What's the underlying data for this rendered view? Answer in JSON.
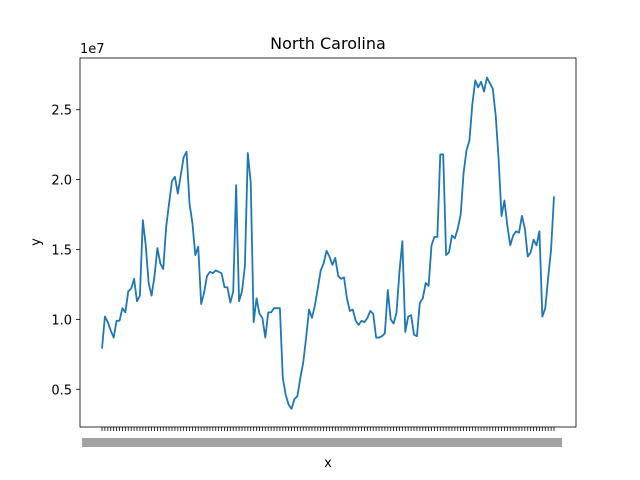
{
  "chart_data": {
    "type": "line",
    "title": "North Carolina",
    "xlabel": "x",
    "ylabel": "y",
    "y_scale_label": "1e7",
    "ylim": [
      2.3,
      28.7
    ],
    "yticks": [
      0.5,
      1.0,
      1.5,
      2.0,
      2.5
    ],
    "ytick_labels": [
      "0.5",
      "1.0",
      "1.5",
      "2.0",
      "2.5"
    ],
    "y_multiplier": 10000000,
    "grid": false,
    "line_color": "#1f77b4",
    "series": [
      {
        "values": [
          7.9,
          10.2,
          9.8,
          9.2,
          8.7,
          9.9,
          9.9,
          10.8,
          10.5,
          12.0,
          12.2,
          12.9,
          11.3,
          11.7,
          17.1,
          15.3,
          12.6,
          11.7,
          13.1,
          15.1,
          14.0,
          13.6,
          16.6,
          18.3,
          19.9,
          20.2,
          19.0,
          20.3,
          21.6,
          22.0,
          18.3,
          16.9,
          14.6,
          15.2,
          11.1,
          11.9,
          13.1,
          13.4,
          13.3,
          13.5,
          13.4,
          13.3,
          12.3,
          12.3,
          11.2,
          12.0,
          19.6,
          11.3,
          12.0,
          13.8,
          21.9,
          19.8,
          9.8,
          11.5,
          10.4,
          10.1,
          8.7,
          10.5,
          10.5,
          10.8,
          10.8,
          10.8,
          5.8,
          4.6,
          3.9,
          3.6,
          4.3,
          4.5,
          5.8,
          6.9,
          8.7,
          10.7,
          10.1,
          11.0,
          12.2,
          13.5,
          14.0,
          14.9,
          14.5,
          13.9,
          14.4,
          13.1,
          12.9,
          13.0,
          11.5,
          10.6,
          10.7,
          9.9,
          9.6,
          9.9,
          9.8,
          10.1,
          10.6,
          10.4,
          8.7,
          8.7,
          8.8,
          9.0,
          12.1,
          10.0,
          9.7,
          10.5,
          13.4,
          15.6,
          9.1,
          10.2,
          10.3,
          8.9,
          8.8,
          11.2,
          11.5,
          12.6,
          12.4,
          15.3,
          15.9,
          15.9,
          21.8,
          21.8,
          14.6,
          14.8,
          16.0,
          15.8,
          16.5,
          17.5,
          20.5,
          22.1,
          22.8,
          25.4,
          27.1,
          26.6,
          27.0,
          26.3,
          27.3,
          26.9,
          26.5,
          24.6,
          21.5,
          17.4,
          18.5,
          16.7,
          15.3,
          16.0,
          16.3,
          16.2,
          17.4,
          16.5,
          14.5,
          14.8,
          15.7,
          15.3,
          16.3,
          10.2,
          10.8,
          13.0,
          15.0,
          18.8
        ]
      }
    ]
  }
}
